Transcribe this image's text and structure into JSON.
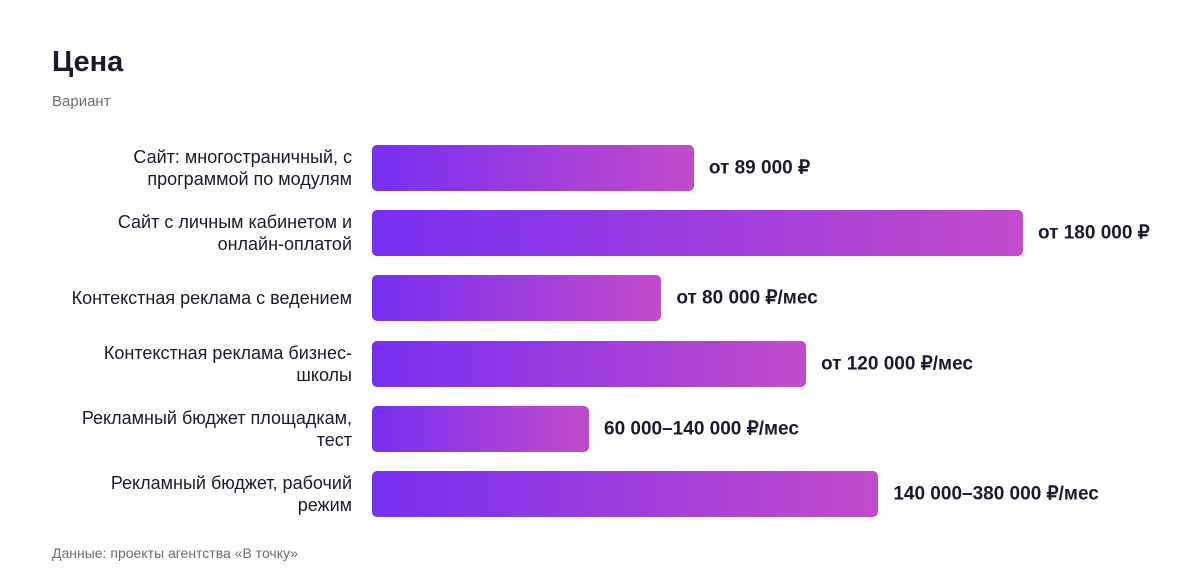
{
  "chart_data": {
    "type": "bar",
    "orientation": "horizontal",
    "title": "Цена",
    "subtitle": "Вариант",
    "source": "Данные: проекты агентства «В точку»",
    "categories": [
      "Сайт: многостраничный, с программой по модулям",
      "Сайт с личным кабинетом и онлайн-оплатой",
      "Контекстная реклама с ведением",
      "Контекстная реклама бизнес-школы",
      "Рекламный бюджет площадкам, тест",
      "Рекламный бюджет, рабочий режим"
    ],
    "values": [
      89000,
      180000,
      80000,
      120000,
      60000,
      140000
    ],
    "value_labels": [
      "от 89 000 ₽",
      "от 180 000 ₽",
      "от 80 000 ₽/мес",
      "от 120 000 ₽/мес",
      "60 000–140 000 ₽/мес",
      "140 000–380 000 ₽/мес"
    ],
    "gradient": [
      "#772ff2",
      "#c34bcb"
    ]
  }
}
